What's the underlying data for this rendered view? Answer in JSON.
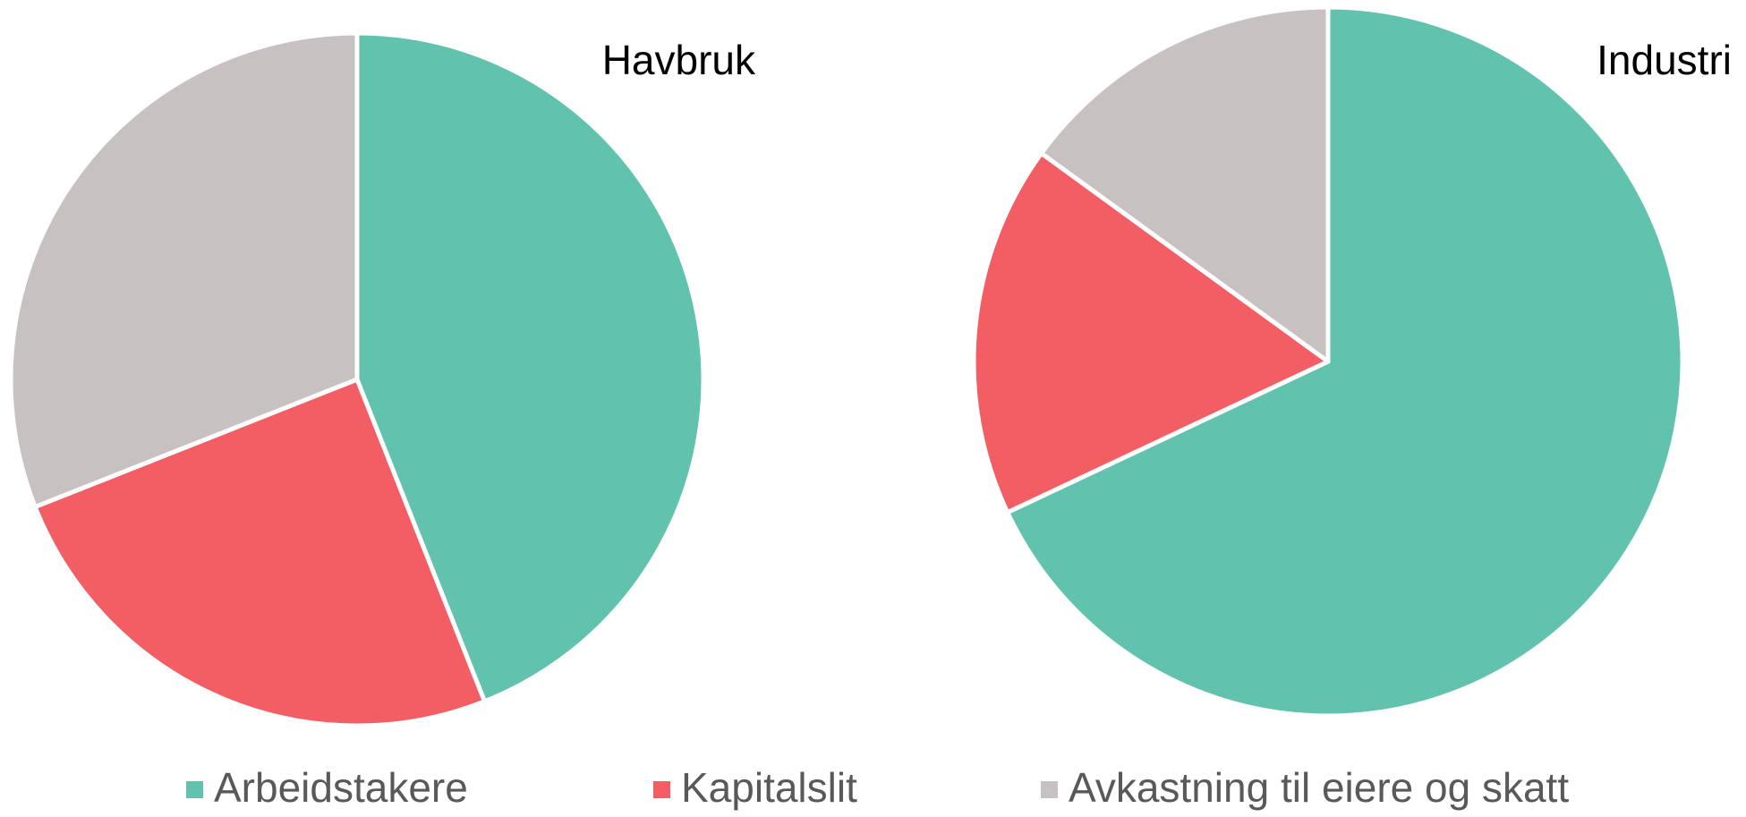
{
  "chart_data": [
    {
      "type": "pie",
      "title": "Havbruk",
      "values": [
        44,
        25,
        31
      ]
    },
    {
      "type": "pie",
      "title": "Industri",
      "values": [
        68,
        17,
        15
      ]
    }
  ],
  "legend": {
    "labels": [
      "Arbeidstakere",
      "Kapitalslit",
      "Avkastning til eiere og skatt"
    ],
    "colors": [
      "#61c3ae",
      "#f25e63",
      "#c8c1c1"
    ]
  }
}
